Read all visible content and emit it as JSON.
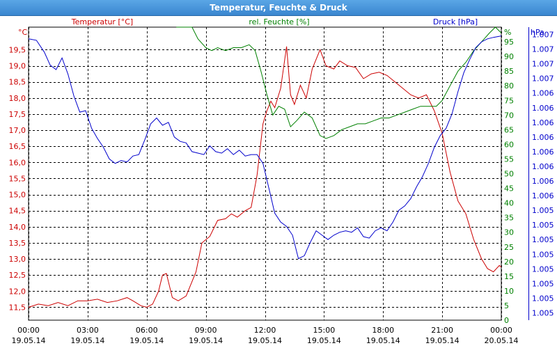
{
  "window": {
    "title": "Temperatur, Feuchte & Druck"
  },
  "chart_data": {
    "type": "line",
    "title": "Temperatur, Feuchte & Druck",
    "grid": true,
    "colors": {
      "temperature": "#cc0000",
      "humidity": "#008000",
      "pressure": "#0000cc",
      "grid": "#000000"
    },
    "x_ticks": [
      {
        "time": "00:00",
        "date": "19.05.14"
      },
      {
        "time": "03:00",
        "date": "19.05.14"
      },
      {
        "time": "06:00",
        "date": "19.05.14"
      },
      {
        "time": "09:00",
        "date": "19.05.14"
      },
      {
        "time": "12:00",
        "date": "19.05.14"
      },
      {
        "time": "15:00",
        "date": "19.05.14"
      },
      {
        "time": "18:00",
        "date": "19.05.14"
      },
      {
        "time": "21:00",
        "date": "19.05.14"
      },
      {
        "time": "00:00",
        "date": "20.05.14"
      }
    ],
    "x_range_hours": [
      0,
      24
    ],
    "axes": {
      "temperature": {
        "label": "Temperatur [°C]",
        "unit": "°C",
        "ylim": [
          11.1,
          20.2
        ],
        "ticks": [
          "11,5",
          "12,0",
          "12,5",
          "13,0",
          "13,5",
          "14,0",
          "14,5",
          "15,0",
          "15,5",
          "16,0",
          "16,5",
          "17,0",
          "17,5",
          "18,0",
          "18,5",
          "19,0",
          "19,5"
        ]
      },
      "humidity": {
        "label": "rel. Feuchte [%]",
        "unit": "%",
        "ylim": [
          0,
          100
        ],
        "ticks": [
          "0",
          "5",
          "10",
          "15",
          "20",
          "25",
          "30",
          "35",
          "40",
          "45",
          "50",
          "55",
          "60",
          "65",
          "70",
          "75",
          "80",
          "85",
          "90",
          "95"
        ]
      },
      "pressure": {
        "label": "Druck [hPa]",
        "unit": "hPa",
        "ticks": [
          "1.005",
          "1.005",
          "1.005",
          "1.005",
          "1.005",
          "1.005",
          "1.005",
          "1.005",
          "1.006",
          "1.006",
          "1.006",
          "1.006",
          "1.006",
          "1.006",
          "1.006",
          "1.006",
          "1.007",
          "1.007",
          "1.007",
          "1.007"
        ]
      }
    },
    "series": [
      {
        "name": "Temperatur [°C]",
        "axis": "temperature",
        "color": "#cc0000",
        "points": [
          [
            0,
            11.5
          ],
          [
            0.5,
            11.6
          ],
          [
            1,
            11.55
          ],
          [
            1.5,
            11.65
          ],
          [
            2,
            11.55
          ],
          [
            2.5,
            11.7
          ],
          [
            3,
            11.7
          ],
          [
            3.5,
            11.75
          ],
          [
            4,
            11.65
          ],
          [
            4.5,
            11.7
          ],
          [
            5,
            11.8
          ],
          [
            5.3,
            11.7
          ],
          [
            5.7,
            11.55
          ],
          [
            6,
            11.5
          ],
          [
            6.3,
            11.6
          ],
          [
            6.6,
            12.0
          ],
          [
            6.8,
            12.5
          ],
          [
            7,
            12.55
          ],
          [
            7.3,
            11.8
          ],
          [
            7.6,
            11.7
          ],
          [
            8,
            11.85
          ],
          [
            8.5,
            12.6
          ],
          [
            8.8,
            13.5
          ],
          [
            9.2,
            13.7
          ],
          [
            9.6,
            14.2
          ],
          [
            10,
            14.25
          ],
          [
            10.3,
            14.4
          ],
          [
            10.6,
            14.3
          ],
          [
            11,
            14.5
          ],
          [
            11.3,
            14.6
          ],
          [
            11.6,
            15.6
          ],
          [
            11.9,
            17.2
          ],
          [
            12.1,
            17.6
          ],
          [
            12.3,
            17.9
          ],
          [
            12.5,
            17.7
          ],
          [
            12.8,
            18.3
          ],
          [
            13.1,
            19.6
          ],
          [
            13.3,
            18.1
          ],
          [
            13.5,
            17.8
          ],
          [
            13.8,
            18.4
          ],
          [
            14.1,
            18.0
          ],
          [
            14.4,
            18.9
          ],
          [
            14.8,
            19.5
          ],
          [
            15.1,
            19.0
          ],
          [
            15.5,
            18.9
          ],
          [
            15.8,
            19.15
          ],
          [
            16.2,
            19.0
          ],
          [
            16.6,
            18.95
          ],
          [
            17,
            18.6
          ],
          [
            17.4,
            18.75
          ],
          [
            17.8,
            18.8
          ],
          [
            18.2,
            18.7
          ],
          [
            18.6,
            18.5
          ],
          [
            19,
            18.3
          ],
          [
            19.4,
            18.1
          ],
          [
            19.8,
            18.0
          ],
          [
            20.2,
            18.1
          ],
          [
            20.6,
            17.6
          ],
          [
            21,
            16.9
          ],
          [
            21.4,
            15.7
          ],
          [
            21.8,
            14.8
          ],
          [
            22.2,
            14.4
          ],
          [
            22.6,
            13.6
          ],
          [
            23,
            13.0
          ],
          [
            23.3,
            12.7
          ],
          [
            23.6,
            12.6
          ],
          [
            23.9,
            12.8
          ],
          [
            24,
            12.75
          ]
        ]
      },
      {
        "name": "rel. Feuchte [%]",
        "axis": "humidity",
        "color": "#008000",
        "points": [
          [
            7.5,
            101
          ],
          [
            8.0,
            100
          ],
          [
            8.3,
            100
          ],
          [
            8.6,
            96
          ],
          [
            9,
            93
          ],
          [
            9.3,
            92
          ],
          [
            9.6,
            93
          ],
          [
            10,
            92
          ],
          [
            10.4,
            93
          ],
          [
            10.8,
            93
          ],
          [
            11.2,
            94
          ],
          [
            11.5,
            92
          ],
          [
            11.8,
            85
          ],
          [
            12.1,
            77
          ],
          [
            12.4,
            70
          ],
          [
            12.7,
            73
          ],
          [
            13,
            72
          ],
          [
            13.3,
            66
          ],
          [
            13.6,
            68
          ],
          [
            14,
            71
          ],
          [
            14.4,
            69
          ],
          [
            14.8,
            63
          ],
          [
            15.1,
            62
          ],
          [
            15.5,
            63
          ],
          [
            15.9,
            65
          ],
          [
            16.3,
            66
          ],
          [
            16.7,
            67
          ],
          [
            17.1,
            67
          ],
          [
            17.5,
            68
          ],
          [
            17.9,
            69
          ],
          [
            18.3,
            69
          ],
          [
            18.7,
            70
          ],
          [
            19.1,
            71
          ],
          [
            19.5,
            72
          ],
          [
            19.9,
            73
          ],
          [
            20.3,
            73
          ],
          [
            20.7,
            73
          ],
          [
            21,
            75
          ],
          [
            21.4,
            80
          ],
          [
            21.8,
            85
          ],
          [
            22.2,
            88
          ],
          [
            22.6,
            92
          ],
          [
            23,
            95
          ],
          [
            23.4,
            98
          ],
          [
            23.7,
            100
          ],
          [
            24,
            98
          ]
        ]
      },
      {
        "name": "Druck [hPa]",
        "axis": "pressure",
        "tick_index_scale": true,
        "color": "#0000cc",
        "points": [
          [
            0,
            18.7
          ],
          [
            0.4,
            18.6
          ],
          [
            0.8,
            17.8
          ],
          [
            1.1,
            16.9
          ],
          [
            1.4,
            16.6
          ],
          [
            1.7,
            17.4
          ],
          [
            2.0,
            16.3
          ],
          [
            2.3,
            14.8
          ],
          [
            2.6,
            13.7
          ],
          [
            2.9,
            13.8
          ],
          [
            3.2,
            12.6
          ],
          [
            3.5,
            11.9
          ],
          [
            3.8,
            11.3
          ],
          [
            4.1,
            10.5
          ],
          [
            4.4,
            10.2
          ],
          [
            4.7,
            10.4
          ],
          [
            5.0,
            10.3
          ],
          [
            5.3,
            10.7
          ],
          [
            5.6,
            10.8
          ],
          [
            5.9,
            11.8
          ],
          [
            6.2,
            12.9
          ],
          [
            6.5,
            13.3
          ],
          [
            6.8,
            12.8
          ],
          [
            7.1,
            13.0
          ],
          [
            7.4,
            12.0
          ],
          [
            7.7,
            11.7
          ],
          [
            8,
            11.6
          ],
          [
            8.3,
            11.0
          ],
          [
            8.6,
            10.9
          ],
          [
            8.9,
            10.8
          ],
          [
            9.2,
            11.4
          ],
          [
            9.5,
            11.0
          ],
          [
            9.8,
            10.9
          ],
          [
            10.1,
            11.2
          ],
          [
            10.4,
            10.8
          ],
          [
            10.7,
            11.1
          ],
          [
            11,
            10.7
          ],
          [
            11.3,
            10.8
          ],
          [
            11.6,
            10.8
          ],
          [
            11.9,
            10.2
          ],
          [
            12.2,
            8.5
          ],
          [
            12.5,
            6.8
          ],
          [
            12.8,
            6.2
          ],
          [
            13.1,
            5.9
          ],
          [
            13.4,
            5.3
          ],
          [
            13.7,
            3.7
          ],
          [
            14,
            3.9
          ],
          [
            14.3,
            4.8
          ],
          [
            14.6,
            5.6
          ],
          [
            14.9,
            5.3
          ],
          [
            15.2,
            5.0
          ],
          [
            15.5,
            5.3
          ],
          [
            15.8,
            5.5
          ],
          [
            16.1,
            5.6
          ],
          [
            16.4,
            5.5
          ],
          [
            16.7,
            5.8
          ],
          [
            17.0,
            5.2
          ],
          [
            17.3,
            5.1
          ],
          [
            17.6,
            5.6
          ],
          [
            17.9,
            5.8
          ],
          [
            18.2,
            5.6
          ],
          [
            18.5,
            6.2
          ],
          [
            18.8,
            7.0
          ],
          [
            19.1,
            7.3
          ],
          [
            19.4,
            7.8
          ],
          [
            19.7,
            8.6
          ],
          [
            20.0,
            9.3
          ],
          [
            20.3,
            10.2
          ],
          [
            20.6,
            11.3
          ],
          [
            20.9,
            12.1
          ],
          [
            21.2,
            12.6
          ],
          [
            21.5,
            13.6
          ],
          [
            21.8,
            15.1
          ],
          [
            22.1,
            16.4
          ],
          [
            22.4,
            17.3
          ],
          [
            22.7,
            18.1
          ],
          [
            23.0,
            18.5
          ],
          [
            23.3,
            18.7
          ],
          [
            23.6,
            18.8
          ],
          [
            24,
            18.9
          ]
        ]
      }
    ]
  }
}
